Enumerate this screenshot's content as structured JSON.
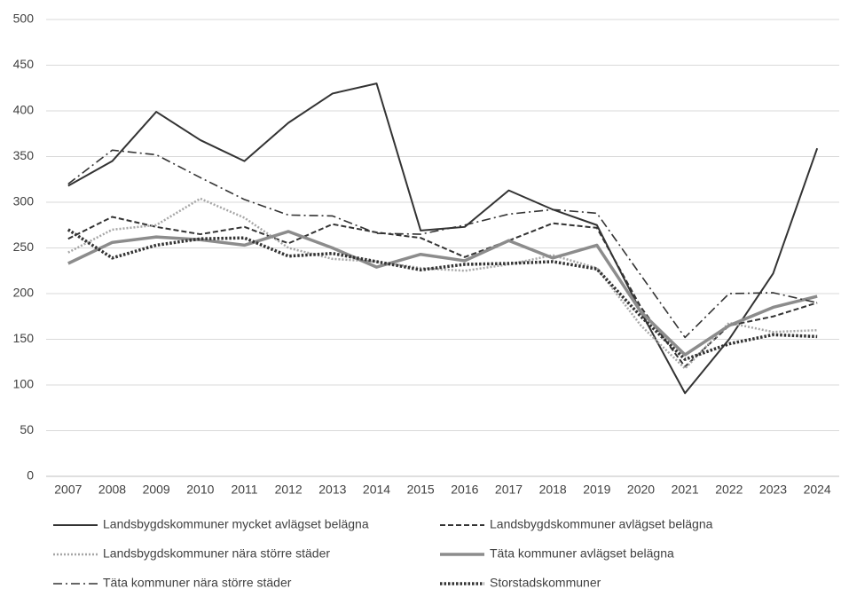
{
  "chart_data": {
    "type": "line",
    "categories": [
      "2007",
      "2008",
      "2009",
      "2010",
      "2011",
      "2012",
      "2013",
      "2014",
      "2015",
      "2016",
      "2017",
      "2018",
      "2019",
      "2020",
      "2021",
      "2022",
      "2023",
      "2024"
    ],
    "series": [
      {
        "name": "Landsbygdskommuner mycket avlägset belägna",
        "color": "#333333",
        "dash": "",
        "width": 2,
        "values": [
          318,
          345,
          399,
          368,
          345,
          387,
          419,
          430,
          269,
          273,
          313,
          292,
          275,
          180,
          91,
          150,
          222,
          359
        ]
      },
      {
        "name": "Landsbygdskommuner avlägset belägna",
        "color": "#333333",
        "dash": "6 3",
        "width": 2,
        "values": [
          260,
          284,
          273,
          265,
          273,
          255,
          276,
          267,
          261,
          240,
          258,
          277,
          272,
          185,
          120,
          165,
          175,
          190
        ]
      },
      {
        "name": "Landsbygdskommuner nära större städer",
        "color": "#a6a6a6",
        "dash": "2 2",
        "width": 2.5,
        "values": [
          245,
          270,
          275,
          304,
          283,
          250,
          238,
          235,
          228,
          225,
          232,
          242,
          228,
          165,
          118,
          168,
          158,
          160
        ]
      },
      {
        "name": "Täta kommuner avlägset belägna",
        "color": "#8c8c8c",
        "dash": "",
        "width": 3.5,
        "values": [
          233,
          256,
          262,
          259,
          253,
          268,
          250,
          229,
          243,
          236,
          258,
          239,
          253,
          180,
          133,
          165,
          185,
          197
        ]
      },
      {
        "name": "Täta kommuner nära större städer",
        "color": "#333333",
        "dash": "10 4 2 4",
        "width": 1.6,
        "values": [
          320,
          357,
          352,
          327,
          303,
          286,
          285,
          266,
          265,
          275,
          287,
          292,
          288,
          220,
          152,
          200,
          201,
          190
        ]
      },
      {
        "name": "Storstadskommuner",
        "color": "#333333",
        "dash": "2.5 2",
        "width": 3.5,
        "values": [
          270,
          239,
          253,
          260,
          261,
          241,
          244,
          235,
          226,
          232,
          233,
          235,
          227,
          175,
          128,
          145,
          155,
          153
        ]
      }
    ],
    "ylim": [
      0,
      500
    ],
    "yticks": [
      0,
      50,
      100,
      150,
      200,
      250,
      300,
      350,
      400,
      450,
      500
    ],
    "grid": true,
    "legend": "bottom"
  }
}
